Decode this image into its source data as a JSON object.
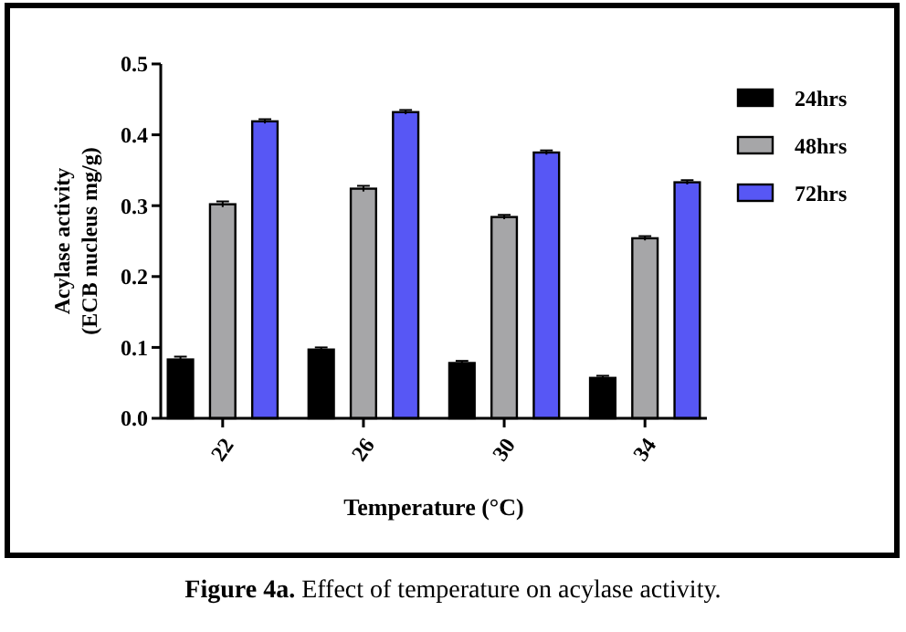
{
  "chart_data": {
    "type": "bar",
    "xlabel": "Temperature (°C)",
    "ylabel": "Acylase activity\n(ECB nucleus mg/g)",
    "categories": [
      "22",
      "26",
      "30",
      "34"
    ],
    "series": [
      {
        "name": "24hrs",
        "color": "#000000",
        "values": [
          0.083,
          0.097,
          0.078,
          0.057
        ],
        "errors": [
          0.004,
          0.003,
          0.003,
          0.003
        ]
      },
      {
        "name": "48hrs",
        "color": "#a6a6a8",
        "values": [
          0.302,
          0.324,
          0.284,
          0.254
        ],
        "errors": [
          0.004,
          0.004,
          0.003,
          0.003
        ]
      },
      {
        "name": "72hrs",
        "color": "#5757f5",
        "values": [
          0.419,
          0.432,
          0.375,
          0.333
        ],
        "errors": [
          0.003,
          0.003,
          0.003,
          0.003
        ]
      }
    ],
    "ylim": [
      0,
      0.5
    ],
    "yticks": [
      {
        "value": 0,
        "label": "0.0"
      },
      0.1,
      0.2,
      0.3,
      0.4,
      0.5
    ],
    "legend": "top right",
    "grid": false,
    "annotations": [
      "Figure 4a. Effect of temperature on acylase activity."
    ]
  }
}
